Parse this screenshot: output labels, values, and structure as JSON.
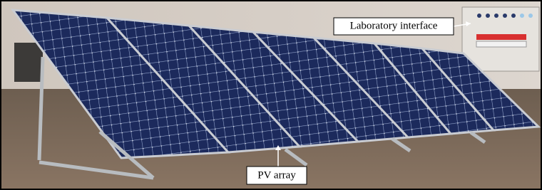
{
  "annotations": {
    "laboratory_interface": "Laboratory interface",
    "pv_array": "PV array"
  }
}
